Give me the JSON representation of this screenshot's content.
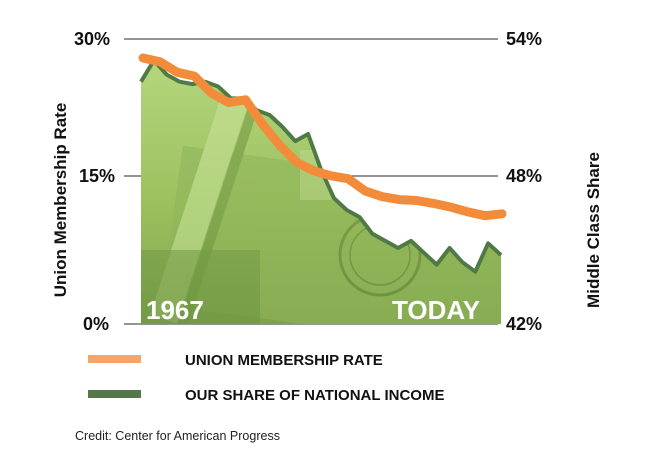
{
  "chart_data": {
    "type": "line",
    "y_left": {
      "label": "Union Membership Rate",
      "ticks": [
        "30%",
        "15%",
        "0%"
      ],
      "range": [
        0,
        30
      ]
    },
    "y_right": {
      "label": "Middle Class Share",
      "ticks": [
        "54%",
        "48%",
        "42%"
      ],
      "range": [
        42,
        54
      ]
    },
    "x_labels": {
      "start": "1967",
      "end": "TODAY"
    },
    "series": [
      {
        "name": "UNION MEMBERSHIP RATE",
        "axis": "left",
        "color": "#f28c3b",
        "values": [
          28.0,
          27.6,
          26.5,
          26.1,
          24.3,
          23.3,
          23.6,
          21.0,
          18.8,
          17.0,
          16.1,
          15.6,
          15.3,
          14.0,
          13.4,
          13.1,
          13.0,
          12.7,
          12.3,
          11.8,
          11.4,
          11.6
        ]
      },
      {
        "name": "OUR SHARE OF NATIONAL INCOME",
        "axis": "right",
        "color": "#4f7a45",
        "values": [
          52.2,
          53.1,
          52.5,
          52.2,
          52.1,
          52.2,
          52.0,
          51.5,
          51.5,
          51.0,
          50.8,
          50.3,
          49.7,
          50.0,
          48.5,
          47.3,
          46.8,
          46.5,
          45.8,
          45.5,
          45.2,
          45.5,
          45.0,
          44.5,
          45.2,
          44.6,
          44.2,
          45.4,
          44.9
        ]
      }
    ],
    "background": "faded currency bill image in green tones"
  },
  "legend": [
    {
      "label": "UNION MEMBERSHIP RATE",
      "color": "#f5a56b"
    },
    {
      "label": "OUR SHARE OF NATIONAL INCOME",
      "color": "#55784a"
    }
  ],
  "credit": "Credit: Center for American Progress"
}
